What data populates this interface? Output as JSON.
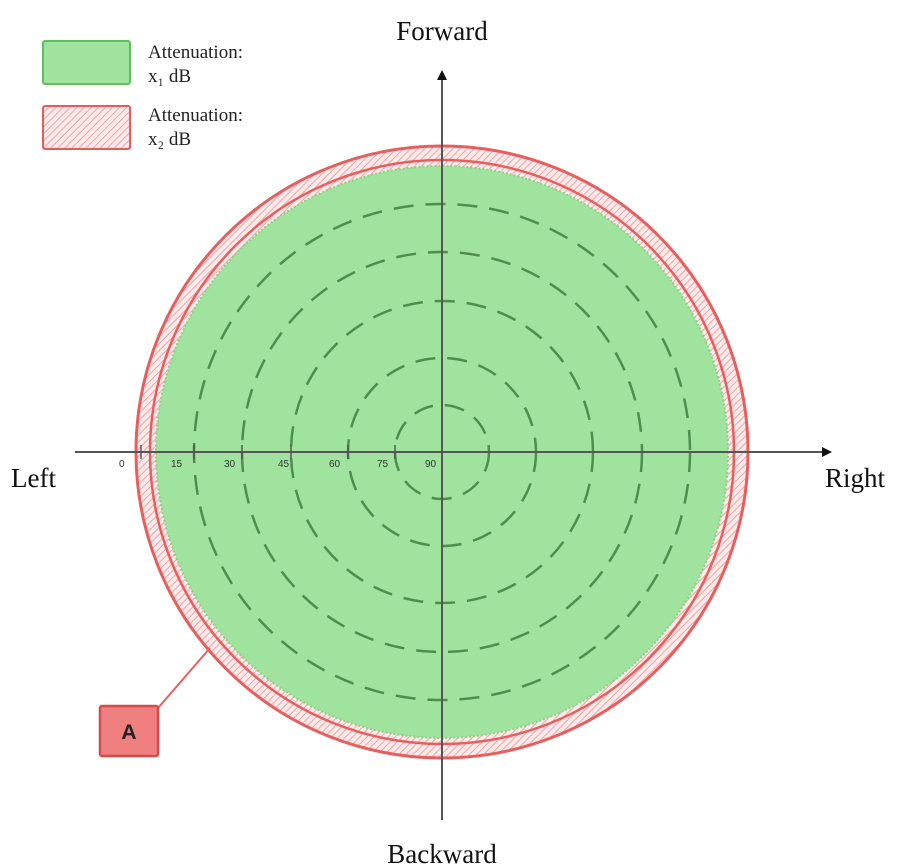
{
  "legend": {
    "items": [
      {
        "line1": "Attenuation:",
        "line2": "x₁ dB",
        "fill": "#9fe39f",
        "stroke": "#5fbf5f"
      },
      {
        "line1": "Attenuation:",
        "line2": "x₂ dB",
        "fill": "#fbe3e3",
        "stroke": "#e95b5b"
      }
    ]
  },
  "directions": {
    "forward": "Forward",
    "backward": "Backward",
    "left": "Left",
    "right": "Right"
  },
  "angle_ticks": [
    "0",
    "15",
    "30",
    "45",
    "60",
    "75",
    "90"
  ],
  "marker": {
    "label": "A",
    "fill": "#f08080",
    "stroke": "#d84a4a"
  },
  "colors": {
    "inner_zone": "#9fe39f",
    "outer_ring": "#e85e5e",
    "axis": "#555555",
    "dashed_circles": "#4f8d4f"
  }
}
